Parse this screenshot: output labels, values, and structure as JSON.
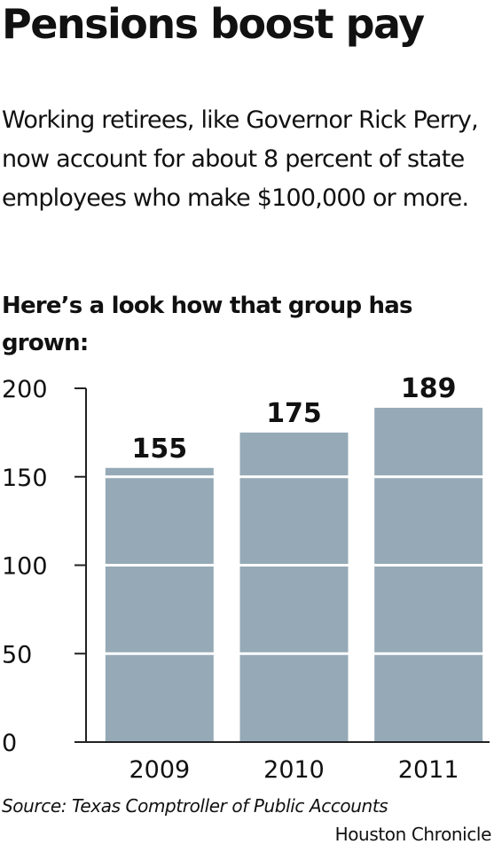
{
  "header": {
    "title": "Pensions boost pay",
    "intro": "Working retirees, like Governor Rick Perry, now account for about 8 percent of state employees who make $100,000 or more.",
    "lede": "Here’s a look  how that group has grown:"
  },
  "chart_data": {
    "type": "bar",
    "categories": [
      "2009",
      "2010",
      "2011"
    ],
    "values": [
      155,
      175,
      189
    ],
    "data_labels": [
      "155",
      "175",
      "189"
    ],
    "ylim": [
      0,
      200
    ],
    "yticks": [
      0,
      50,
      100,
      150,
      200
    ],
    "ytick_labels": [
      "0",
      "50",
      "100",
      "150",
      "200"
    ],
    "xlabel": "",
    "ylabel": "",
    "grid": "horizontal white lines drawn across bars",
    "colors": {
      "bar": "#95aab6",
      "gridline": "#ffffff",
      "axis": "#222222",
      "text": "#111111"
    }
  },
  "footer": {
    "source": "Source: Texas Comptroller of Public Accounts",
    "credit": "Houston Chronicle"
  }
}
